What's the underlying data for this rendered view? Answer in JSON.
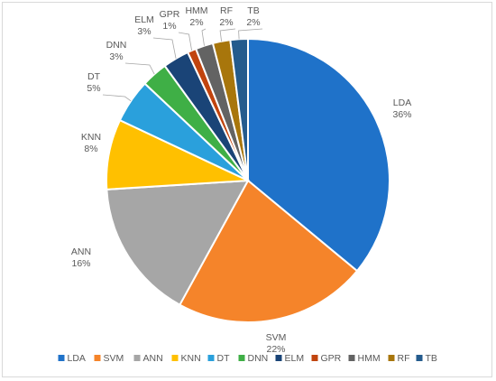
{
  "chart_data": {
    "type": "pie",
    "title": "",
    "legend_position": "bottom",
    "slices": [
      {
        "label": "LDA",
        "value": 36,
        "display": "36%",
        "color": "#1f72c9"
      },
      {
        "label": "SVM",
        "value": 22,
        "display": "22%",
        "color": "#f5842a"
      },
      {
        "label": "ANN",
        "value": 16,
        "display": "16%",
        "color": "#a6a6a6"
      },
      {
        "label": "KNN",
        "value": 8,
        "display": "8%",
        "color": "#ffc000"
      },
      {
        "label": "DT",
        "value": 5,
        "display": "5%",
        "color": "#2aa0dc"
      },
      {
        "label": "DNN",
        "value": 3,
        "display": "3%",
        "color": "#3faf46"
      },
      {
        "label": "ELM",
        "value": 3,
        "display": "3%",
        "color": "#1a4477"
      },
      {
        "label": "GPR",
        "value": 1,
        "display": "1%",
        "color": "#c1440e"
      },
      {
        "label": "HMM",
        "value": 2,
        "display": "2%",
        "color": "#636363"
      },
      {
        "label": "RF",
        "value": 2,
        "display": "2%",
        "color": "#a8760c"
      },
      {
        "label": "TB",
        "value": 2,
        "display": "2%",
        "color": "#245b8d"
      }
    ]
  }
}
